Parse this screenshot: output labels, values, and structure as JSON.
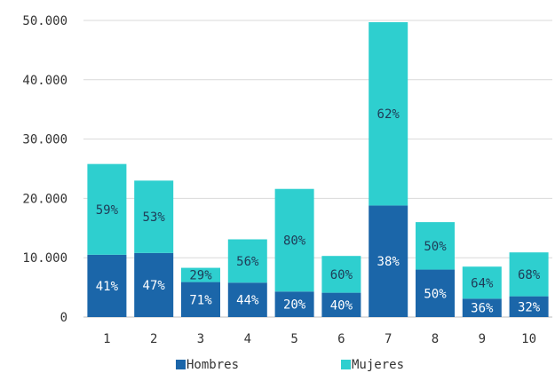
{
  "chart_data": {
    "type": "bar",
    "stacked": true,
    "categories": [
      "1",
      "2",
      "3",
      "4",
      "5",
      "6",
      "7",
      "8",
      "9",
      "10"
    ],
    "series": [
      {
        "name": "Hombres",
        "color": "#1b66a9",
        "values": [
          10500,
          10800,
          5900,
          5800,
          4300,
          4100,
          18800,
          8000,
          3100,
          3500
        ],
        "labels": [
          "41%",
          "47%",
          "71%",
          "44%",
          "20%",
          "40%",
          "38%",
          "50%",
          "36%",
          "32%"
        ]
      },
      {
        "name": "Mujeres",
        "color": "#2ecfcf",
        "values": [
          15300,
          12200,
          2400,
          7300,
          17300,
          6200,
          30900,
          8000,
          5400,
          7400
        ],
        "labels": [
          "59%",
          "53%",
          "29%",
          "56%",
          "80%",
          "60%",
          "62%",
          "50%",
          "64%",
          "68%"
        ]
      }
    ],
    "ylim": [
      0,
      50000
    ],
    "yticks": [
      0,
      10000,
      20000,
      30000,
      40000,
      50000
    ],
    "ytick_labels": [
      "0",
      "10.000",
      "20.000",
      "30.000",
      "40.000",
      "50.000"
    ],
    "grid": true,
    "legend_position": "bottom",
    "title": "",
    "xlabel": "",
    "ylabel": ""
  }
}
